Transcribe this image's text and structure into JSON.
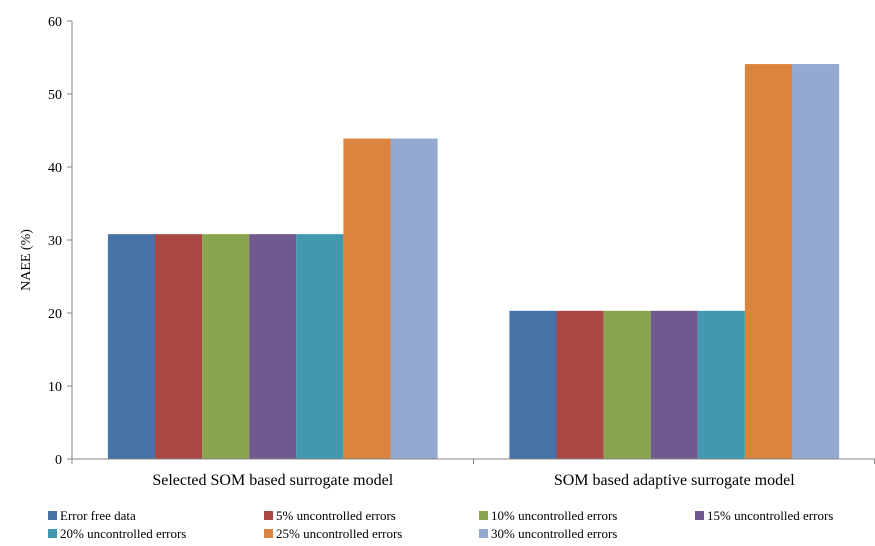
{
  "chart_data": {
    "type": "bar",
    "title": "",
    "xlabel": "",
    "ylabel": "NAEE (%)",
    "ylim": [
      0,
      60
    ],
    "yticks": [
      0,
      10,
      20,
      30,
      40,
      50,
      60
    ],
    "grid": false,
    "legend_position": "bottom",
    "categories": [
      "Selected SOM based surrogate model",
      "SOM based adaptive surrogate model"
    ],
    "series": [
      {
        "name": "Error free data",
        "color": "#4572A7",
        "values": [
          30.8,
          20.3
        ]
      },
      {
        "name": "5% uncontrolled errors",
        "color": "#AA4643",
        "values": [
          30.8,
          20.3
        ]
      },
      {
        "name": "10% uncontrolled errors",
        "color": "#89A54E",
        "values": [
          30.8,
          20.3
        ]
      },
      {
        "name": "15% uncontrolled errors",
        "color": "#71588F",
        "values": [
          30.8,
          20.3
        ]
      },
      {
        "name": "20% uncontrolled errors",
        "color": "#4198AF",
        "values": [
          30.8,
          20.3
        ]
      },
      {
        "name": "25% uncontrolled errors",
        "color": "#DB843D",
        "values": [
          43.9,
          54.1
        ]
      },
      {
        "name": "30% uncontrolled errors",
        "color": "#93A9CF",
        "values": [
          43.9,
          54.1
        ]
      }
    ]
  }
}
